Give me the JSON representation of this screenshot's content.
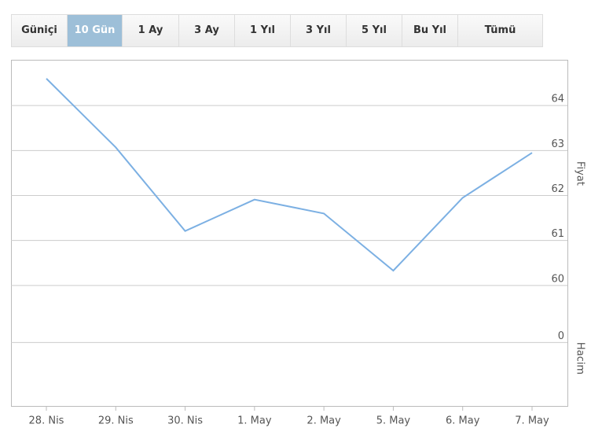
{
  "tabs": {
    "labels": [
      "Güniçi",
      "10 Gün",
      "1 Ay",
      "3 Ay",
      "1 Yıl",
      "3 Yıl",
      "5 Yıl",
      "Bu Yıl",
      "Tümü"
    ],
    "active": 1
  },
  "chart_data": [
    {
      "type": "line",
      "y_label": "Fiyat",
      "categories": [
        "28. Nis",
        "29. Nis",
        "30. Nis",
        "1. May",
        "2. May",
        "5. May",
        "6. May",
        "7. May"
      ],
      "series": [
        {
          "color": "#7cb0e3",
          "values": [
            64.6,
            63.07,
            61.21,
            61.91,
            61.6,
            60.33,
            61.95,
            62.95
          ]
        }
      ],
      "ylim": [
        59.7,
        65.0
      ],
      "yticks": [
        60,
        61,
        62,
        63,
        64
      ],
      "grid": true
    },
    {
      "type": "bar",
      "y_label": "Hacim",
      "ylim": [
        -1,
        0.5
      ],
      "yticks": [
        0
      ],
      "grid": true
    }
  ]
}
